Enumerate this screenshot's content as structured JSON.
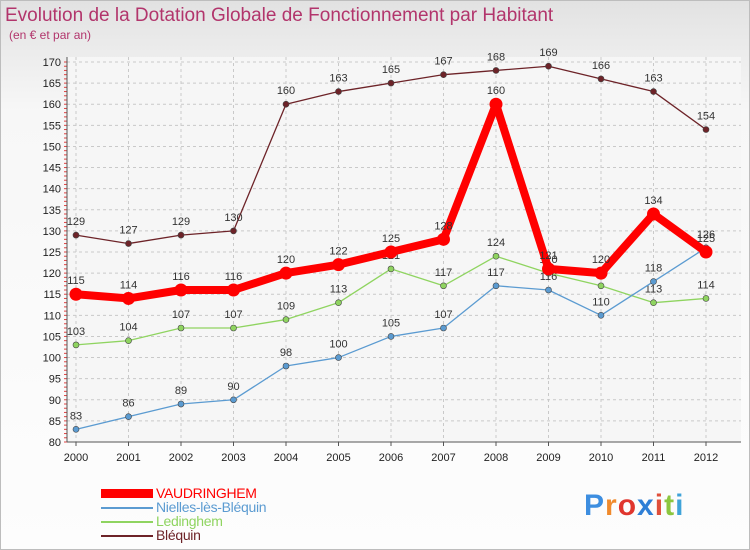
{
  "title": "Evolution de la Dotation Globale de Fonctionnement par Habitant",
  "subtitle": "(en € et par an)",
  "brand": {
    "letters": [
      "P",
      "r",
      "o",
      "x",
      "i",
      "t",
      "i"
    ],
    "colors": [
      "#3d8ee0",
      "#f08a2c",
      "#e0362e",
      "#2f7fd6",
      "#e04f3a",
      "#8cc63f",
      "#3fa3d9"
    ]
  },
  "chart_data": {
    "type": "line",
    "title": "Evolution de la Dotation Globale de Fonctionnement par Habitant",
    "ylabel": "(en € et par an)",
    "xlabel": "",
    "x": [
      "2000",
      "2001",
      "2002",
      "2003",
      "2004",
      "2005",
      "2006",
      "2007",
      "2008",
      "2009",
      "2010",
      "2011",
      "2012"
    ],
    "yticks": [
      "80",
      "85",
      "90",
      "95",
      "100",
      "105",
      "110",
      "115",
      "120",
      "125",
      "130",
      "135",
      "140",
      "145",
      "150",
      "155",
      "160",
      "165",
      "170"
    ],
    "ylim": [
      80,
      170
    ],
    "grid": true,
    "legend_position": "bottom-left",
    "series": [
      {
        "name": "Bléquin",
        "color": "#6d2328",
        "values": [
          129,
          127,
          129,
          130,
          160,
          163,
          165,
          167,
          168,
          169,
          166,
          163,
          154
        ]
      },
      {
        "name": "Ledinghem",
        "color": "#8fd460",
        "values": [
          103,
          104,
          107,
          107,
          109,
          113,
          121,
          117,
          124,
          120,
          117,
          113,
          114
        ]
      },
      {
        "name": "Nielles-lès-Bléquin",
        "color": "#5b9bd1",
        "values": [
          83,
          86,
          89,
          90,
          98,
          100,
          105,
          107,
          117,
          116,
          110,
          118,
          126
        ]
      },
      {
        "name": "VAUDRINGHEM",
        "color": "#ff0000",
        "values": [
          115,
          114,
          116,
          116,
          120,
          122,
          125,
          128,
          160,
          121,
          120,
          134,
          125
        ]
      }
    ],
    "legend_order": [
      "VAUDRINGHEM",
      "Nielles-lès-Bléquin",
      "Ledinghem",
      "Bléquin"
    ]
  }
}
